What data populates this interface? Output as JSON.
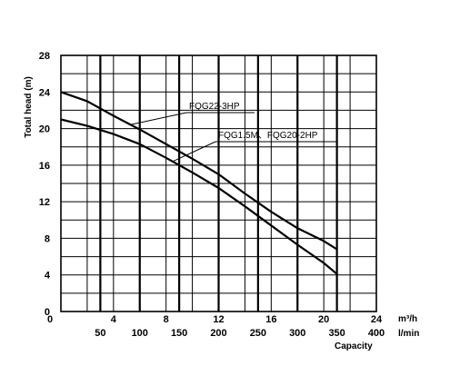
{
  "chart_data": {
    "type": "line",
    "ylabel": "Total head  (m)",
    "x_label_top_unit": "m³/h",
    "x_label_bottom_unit": "l/min",
    "x_title": "Capacity",
    "x_top_ticks": [
      "0",
      "4",
      "8",
      "12",
      "16",
      "20",
      "24"
    ],
    "x_top_values": [
      0,
      4,
      8,
      12,
      16,
      20,
      24
    ],
    "x_bottom_ticks": [
      "50",
      "100",
      "150",
      "200",
      "250",
      "300",
      "350",
      "400"
    ],
    "x_bottom_values": [
      50,
      100,
      150,
      200,
      250,
      300,
      350,
      400
    ],
    "y_ticks": [
      "0",
      "4",
      "8",
      "12",
      "16",
      "20",
      "24",
      "28"
    ],
    "y_values": [
      0,
      4,
      8,
      12,
      16,
      20,
      24,
      28
    ],
    "xlim_m3h": [
      0,
      24
    ],
    "ylim": [
      0,
      28
    ],
    "grid": true,
    "series": [
      {
        "name": "FQG22-3HP",
        "x": [
          0,
          2,
          4,
          6,
          8,
          10,
          12,
          14,
          16,
          18,
          20,
          21
        ],
        "y": [
          24,
          23,
          21.4,
          19.9,
          18.3,
          16.7,
          15,
          12.9,
          10.9,
          9.1,
          7.7,
          6.8
        ]
      },
      {
        "name": "FQG1.5M、FQG20-2HP",
        "x": [
          0,
          2,
          4,
          6,
          8,
          10,
          12,
          14,
          16,
          18,
          20,
          21
        ],
        "y": [
          21,
          20.3,
          19.4,
          18.3,
          16.8,
          15.2,
          13.5,
          11.5,
          9.4,
          7.3,
          5.3,
          4.1
        ]
      }
    ],
    "callouts": [
      {
        "label": "FQG22-3HP",
        "series_index": 0,
        "point_x": 5.3
      },
      {
        "label": "FQG1.5M、FQG20-2HP",
        "series_index": 1,
        "point_x": 8.5
      }
    ]
  }
}
